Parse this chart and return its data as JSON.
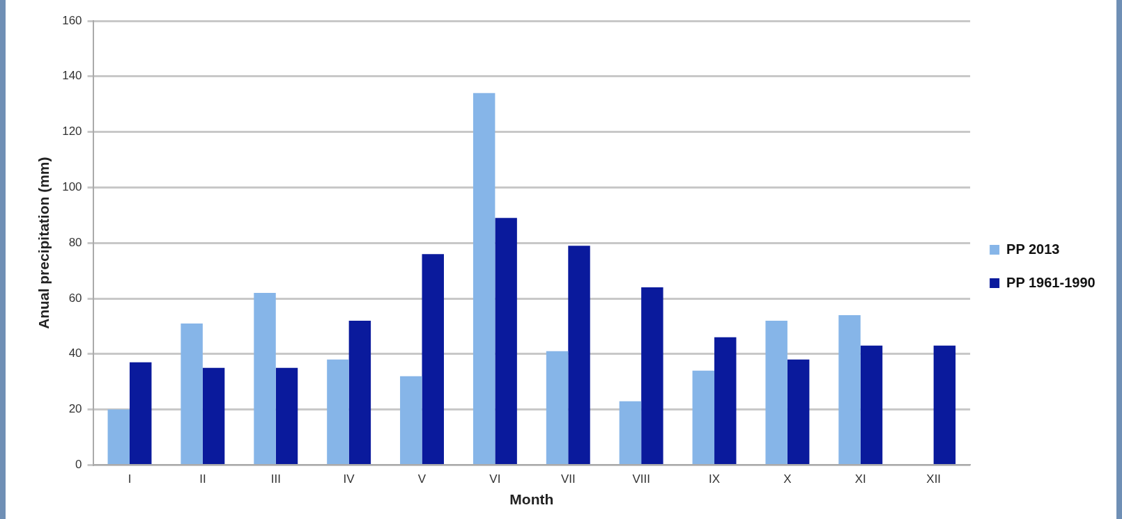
{
  "chart_data": {
    "type": "bar",
    "xlabel": "Month",
    "ylabel": "Anual precipitation (mm)",
    "categories": [
      "I",
      "II",
      "III",
      "IV",
      "V",
      "VI",
      "VII",
      "VIII",
      "IX",
      "X",
      "XI",
      "XII"
    ],
    "series": [
      {
        "name": "PP 2013",
        "color": "#86b5e8",
        "values": [
          20,
          51,
          62,
          38,
          32,
          134,
          41,
          23,
          34,
          52,
          54,
          0
        ]
      },
      {
        "name": "PP 1961-1990",
        "color": "#0a1a9c",
        "values": [
          37,
          35,
          35,
          52,
          76,
          89,
          79,
          64,
          46,
          38,
          43,
          43
        ]
      }
    ],
    "ylim": [
      0,
      160
    ],
    "yticks": [
      0,
      20,
      40,
      60,
      80,
      100,
      120,
      140,
      160
    ],
    "grid": "y",
    "legend": "right"
  }
}
